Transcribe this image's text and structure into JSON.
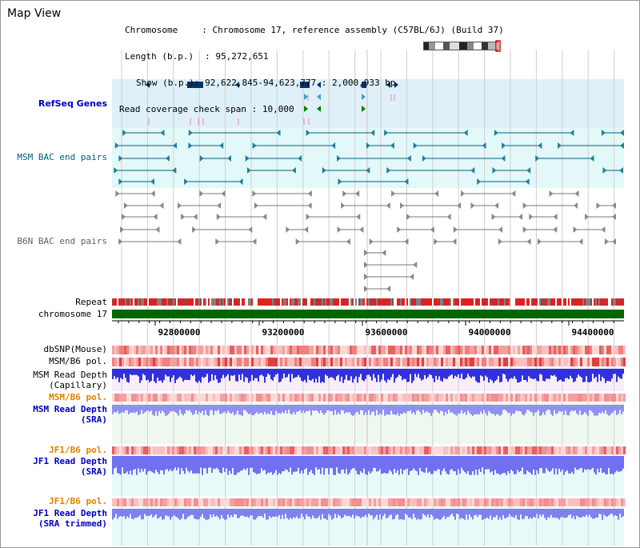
{
  "view_title": "Map View",
  "info": {
    "chromosome_label": "Chromosome",
    "chromosome_value": "Chromosome 17, reference assembly (C57BL/6J) (Build 37)",
    "length_label": "Length (b.p.)",
    "length_value": "95,272,651",
    "show_label": "Show (b.p.)",
    "show_value": "92,622,845-94,623,777 : 2,000,933 bp",
    "coverage_label": "Read coverage check span",
    "coverage_value": "10,000"
  },
  "tracks": {
    "refseq": "RefSeq Genes",
    "msm_bac": "MSM BAC end pairs",
    "b6n_bac": "B6N BAC end pairs",
    "repeat": "Repeat",
    "chromosome": "chromosome 17",
    "dbsnp": "dbSNP(Mouse)",
    "msm_b6_pol_1": "MSM/B6 pol.",
    "msm_read_depth_cap_1": "MSM Read Depth",
    "msm_read_depth_cap_2": "(Capillary)",
    "msm_b6_pol_2": "MSM/B6 pol.",
    "msm_read_depth_sra_1": "MSM Read Depth",
    "msm_read_depth_sra_2": "(SRA)",
    "jf1_b6_pol_1": "JF1/B6 pol.",
    "jf1_read_depth_1": "JF1 Read Depth",
    "jf1_read_depth_2": "(SRA)",
    "jf1_b6_pol_2": "JF1/B6 pol.",
    "jf1_read_depth_trim_1": "JF1 Read Depth",
    "jf1_read_depth_trim_2": "(SRA trimmed)"
  },
  "ruler": {
    "ticks": [
      "92800000",
      "93200000",
      "93600000",
      "94000000",
      "94400000"
    ]
  },
  "colors": {
    "refseq_bg": "#dff0f8",
    "msm_bac_bg": "#e3f8f8",
    "repeat_red": "#e02020",
    "chromosome_green": "#006600",
    "snp_pink": "#f4a0a0",
    "depth_blue": "#3030e0",
    "depth_light": "#8080f0",
    "msm_label_teal": "#006080",
    "blue_label": "#0000c0",
    "orange_label": "#e08000",
    "gray_label": "#606060"
  }
}
